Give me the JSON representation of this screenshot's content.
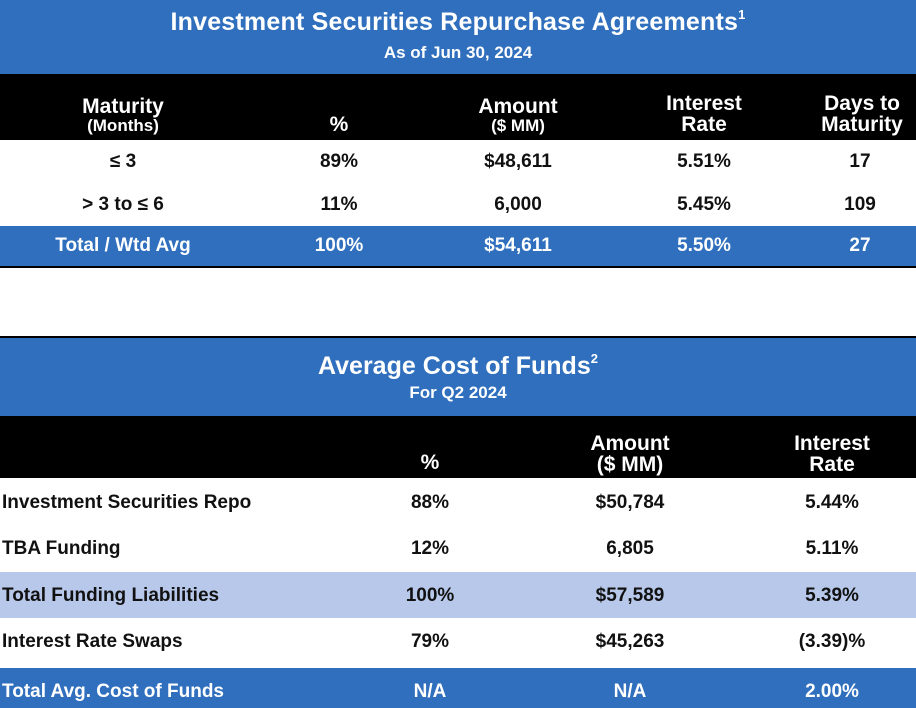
{
  "repo": {
    "title": "Investment Securities Repurchase Agreements",
    "title_footnote": "1",
    "subtitle": "As of Jun 30, 2024",
    "columns": {
      "maturity": "Maturity",
      "maturity_unit": "(Months)",
      "pct": "%",
      "amount": "Amount",
      "amount_unit": "($ MM)",
      "rate_line1": "Interest",
      "rate_line2": "Rate",
      "days_line1": "Days to",
      "days_line2": "Maturity"
    },
    "rows": [
      {
        "maturity": "≤ 3",
        "pct": "89%",
        "amount": "$48,611",
        "rate": "5.51%",
        "days": "17"
      },
      {
        "maturity": "> 3 to ≤ 6",
        "pct": "11%",
        "amount": "6,000",
        "rate": "5.45%",
        "days": "109"
      }
    ],
    "total": {
      "label": "Total / Wtd Avg",
      "pct": "100%",
      "amount": "$54,611",
      "rate": "5.50%",
      "days": "27"
    }
  },
  "cost": {
    "title": "Average Cost of Funds",
    "title_footnote": "2",
    "subtitle": "For Q2 2024",
    "columns": {
      "pct": "%",
      "amount": "Amount",
      "amount_unit": "($ MM)",
      "rate_line1": "Interest",
      "rate_line2": "Rate"
    },
    "rows": [
      {
        "label": "Investment Securities Repo",
        "pct": "88%",
        "amount": "$50,784",
        "rate": "5.44%"
      },
      {
        "label": "TBA Funding",
        "pct": "12%",
        "amount": "6,805",
        "rate": "5.11%"
      },
      {
        "label": "Total Funding Liabilities",
        "pct": "100%",
        "amount": "$57,589",
        "rate": "5.39%"
      },
      {
        "label": "Interest Rate Swaps",
        "pct": "79%",
        "amount": "$45,263",
        "rate": "(3.39)%"
      }
    ],
    "total": {
      "label": "Total Avg. Cost of Funds",
      "pct": "N/A",
      "amount": "N/A",
      "rate": "2.00%"
    }
  },
  "colors": {
    "header_blue": "#2f6fbd",
    "highlight_row": "#b7c8ea",
    "column_header_bg": "#000000"
  }
}
